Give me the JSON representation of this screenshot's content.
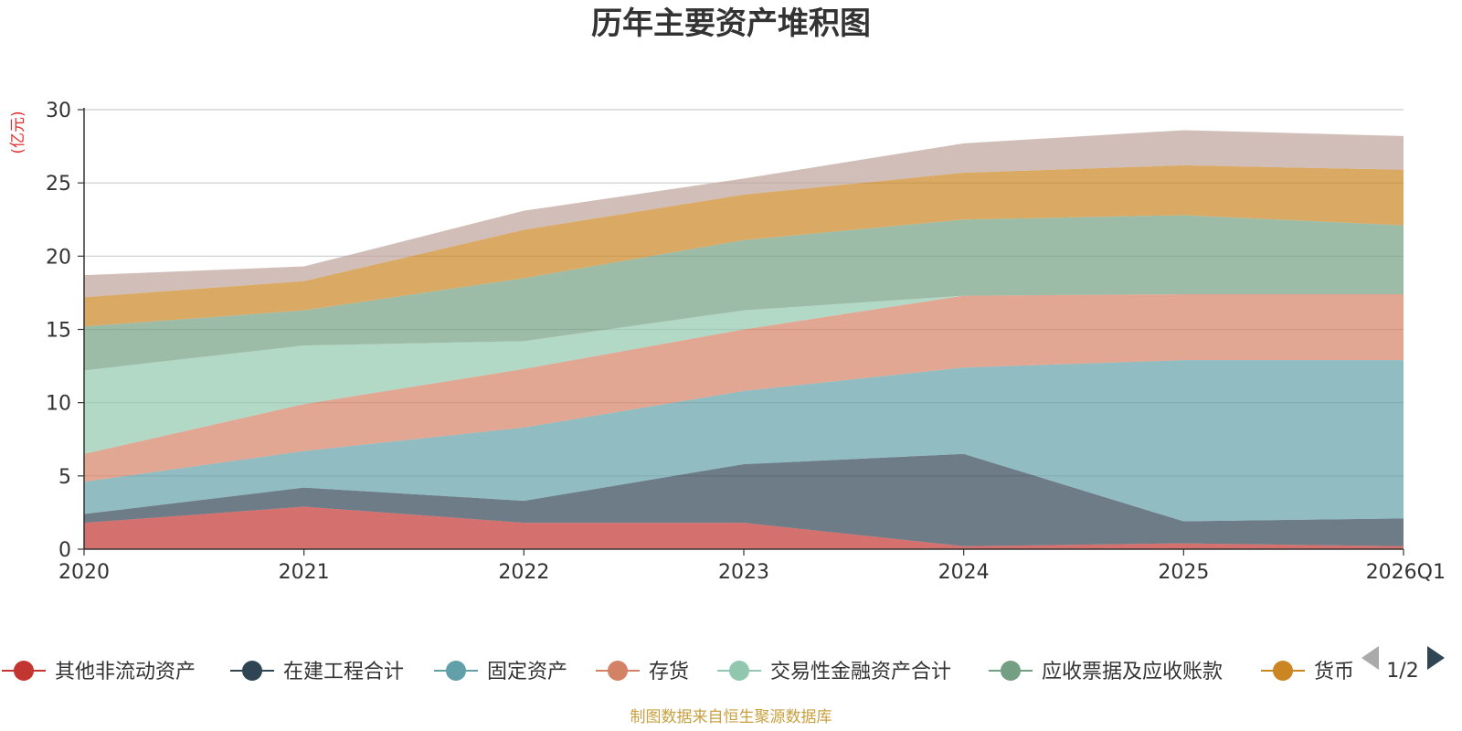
{
  "chart_data": {
    "type": "area",
    "stacked": true,
    "title": "历年主要资产堆积图",
    "ylabel": "(亿元)",
    "ylim": [
      0,
      30
    ],
    "yticks": [
      0,
      5,
      10,
      15,
      20,
      25,
      30
    ],
    "categories": [
      "2020",
      "2021",
      "2022",
      "2023",
      "2024",
      "2025",
      "2026Q1"
    ],
    "series": [
      {
        "name": "其他非流动资产",
        "color": "#c23531",
        "values": [
          1.8,
          2.9,
          1.8,
          1.8,
          0.2,
          0.4,
          0.2
        ]
      },
      {
        "name": "在建工程合计",
        "color": "#2f4554",
        "values": [
          0.6,
          1.3,
          1.5,
          4.0,
          6.3,
          1.5,
          1.9
        ]
      },
      {
        "name": "固定资产",
        "color": "#61a0a8",
        "values": [
          2.2,
          2.5,
          5.0,
          5.0,
          5.9,
          11.0,
          10.8
        ]
      },
      {
        "name": "存货",
        "color": "#d48265",
        "values": [
          1.9,
          3.2,
          4.0,
          4.2,
          4.9,
          4.5,
          4.5
        ]
      },
      {
        "name": "交易性金融资产合计",
        "color": "#91c7ae",
        "values": [
          5.7,
          4.0,
          1.9,
          1.3,
          0.0,
          0.0,
          0.0
        ]
      },
      {
        "name": "应收票据及应收账款",
        "color": "#749f83",
        "values": [
          3.0,
          2.4,
          4.3,
          4.8,
          5.2,
          5.4,
          4.7
        ]
      },
      {
        "name": "货币",
        "color": "#ca8622",
        "values": [
          2.0,
          2.0,
          3.3,
          3.1,
          3.2,
          3.4,
          3.8
        ]
      },
      {
        "name": "",
        "color": "#bda29a",
        "values": [
          1.5,
          1.0,
          1.3,
          1.1,
          2.0,
          2.4,
          2.3
        ]
      }
    ],
    "grid": true,
    "legend_position": "bottom"
  },
  "legend": {
    "page": "1/2"
  },
  "footer": {
    "source": "制图数据来自恒生聚源数据库"
  },
  "colors": {
    "unit_label": "#e03030",
    "source_text": "#c8a040",
    "axis": "#333333",
    "gridline": "#cccccc",
    "pager_active": "#2f4554",
    "pager_inactive": "#aaaaaa"
  }
}
